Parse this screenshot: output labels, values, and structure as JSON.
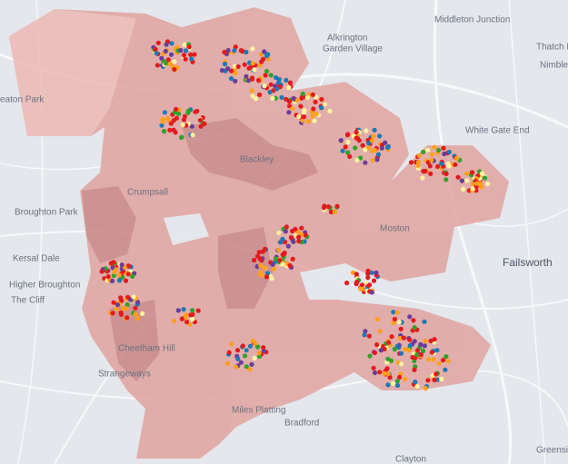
{
  "map": {
    "labels": [
      "Middleton Junction",
      "Alkrington",
      "Garden Village",
      "Thatch Le",
      "Nimble N",
      "eaton Park",
      "White Gate End",
      "Blackley",
      "Crumpsall",
      "Broughton Park",
      "Moston",
      "Failsworth",
      "Kersal Dale",
      "Higher Broughton",
      "The Cliff",
      "Cheetham Hill",
      "Strangeways",
      "Miles Platting",
      "Bradford",
      "Clayton",
      "Greensid"
    ]
  }
}
